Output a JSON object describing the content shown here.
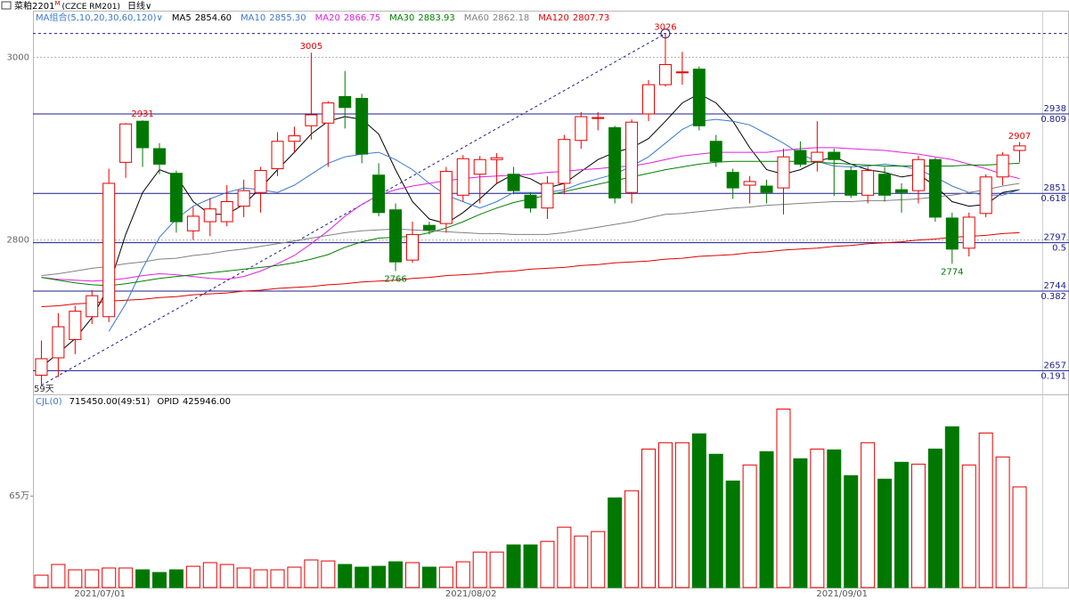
{
  "header": {
    "symbol": "菜粕2201",
    "superscript": "M",
    "code": "(CZCE RM201)",
    "period": "日线"
  },
  "chart_data": [
    {
      "type": "candlestick",
      "legend_title": "MA组合(5,10,20,30,60,120)",
      "day_count": "59天",
      "categories": [
        null,
        null,
        null,
        null,
        "2021/07/01",
        null,
        null,
        null,
        null,
        null,
        null,
        null,
        null,
        null,
        null,
        null,
        null,
        null,
        null,
        null,
        null,
        null,
        null,
        null,
        null,
        null,
        "2021/08/02",
        null,
        null,
        null,
        null,
        null,
        null,
        null,
        null,
        null,
        null,
        null,
        null,
        null,
        null,
        null,
        null,
        null,
        null,
        null,
        null,
        null,
        "2021/09/01",
        null,
        null,
        null,
        null,
        null,
        null,
        null,
        null,
        null,
        null
      ],
      "open": [
        2652,
        2671,
        2691,
        2716,
        2716,
        2885,
        2930,
        2900,
        2873,
        2810,
        2820,
        2820,
        2837,
        2852,
        2878,
        2908,
        2925,
        2928,
        2957,
        2955,
        2871,
        2833,
        2778,
        2816,
        2818,
        2849,
        2872,
        2888,
        2872,
        2849,
        2835,
        2862,
        2909,
        2933,
        2923,
        2852,
        2938,
        2970,
        2983,
        2987,
        2908,
        2874,
        2860,
        2859,
        2857,
        2898,
        2886,
        2896,
        2876,
        2849,
        2872,
        2855,
        2854,
        2888,
        2824,
        2791,
        2829,
        2869,
        2898
      ],
      "high": [
        2690,
        2720,
        2728,
        2745,
        2878,
        2928,
        2931,
        2906,
        2876,
        2836,
        2846,
        2860,
        2866,
        2880,
        2918,
        2924,
        3005,
        2952,
        2985,
        2960,
        2884,
        2840,
        2820,
        2820,
        2880,
        2893,
        2892,
        2895,
        2880,
        2852,
        2870,
        2915,
        2940,
        2940,
        2925,
        2932,
        2975,
        3026,
        3006,
        2990,
        2915,
        2878,
        2870,
        2866,
        2900,
        2908,
        2930,
        2900,
        2880,
        2880,
        2880,
        2862,
        2892,
        2890,
        2830,
        2830,
        2872,
        2896,
        2907
      ],
      "low": [
        2641,
        2650,
        2675,
        2708,
        2710,
        2868,
        2880,
        2872,
        2808,
        2800,
        2804,
        2815,
        2825,
        2830,
        2870,
        2895,
        2910,
        2880,
        2922,
        2884,
        2826,
        2766,
        2775,
        2806,
        2808,
        2842,
        2840,
        2862,
        2850,
        2830,
        2823,
        2850,
        2900,
        2920,
        2840,
        2840,
        2930,
        2968,
        2970,
        2920,
        2880,
        2845,
        2840,
        2840,
        2828,
        2880,
        2875,
        2848,
        2846,
        2840,
        2842,
        2830,
        2840,
        2820,
        2774,
        2782,
        2825,
        2860,
        2885
      ],
      "close": [
        2670,
        2705,
        2722,
        2739,
        2862,
        2927,
        2901,
        2883,
        2820,
        2826,
        2834,
        2842,
        2854,
        2876,
        2908,
        2914,
        2937,
        2950,
        2945,
        2894,
        2830,
        2776,
        2806,
        2811,
        2875,
        2889,
        2888,
        2890,
        2854,
        2835,
        2862,
        2910,
        2935,
        2934,
        2846,
        2929,
        2970,
        2992,
        2984,
        2925,
        2886,
        2857,
        2864,
        2852,
        2891,
        2883,
        2896,
        2888,
        2849,
        2876,
        2849,
        2852,
        2888,
        2825,
        2790,
        2825,
        2869,
        2893,
        2903
      ],
      "up_color": "#e60000",
      "down_color": "#007800",
      "ylim": [
        2631,
        3051
      ],
      "yticks": [
        2800,
        3000
      ],
      "grid": true,
      "annotations": [
        2931,
        3005,
        2766,
        3026,
        2774,
        2907
      ],
      "fib_levels": [
        {
          "value": 2938,
          "ratio": 0.809
        },
        {
          "value": 2851,
          "ratio": 0.618
        },
        {
          "value": 2797,
          "ratio": 0.5
        },
        {
          "value": 2744,
          "ratio": 0.382
        },
        {
          "value": 2657,
          "ratio": 0.191
        }
      ],
      "fib_color": "#1c1c8c",
      "series": [
        {
          "name": "MA5",
          "color": "#000000",
          "current": {
            "value": 2854.6,
            "label": "2854.60"
          },
          "values": [
            2661,
            2676,
            2692,
            2715,
            2749,
            2806,
            2852,
            2877,
            2870,
            2842,
            2828,
            2828,
            2839,
            2857,
            2877,
            2896,
            2916,
            2930,
            2935,
            2932,
            2916,
            2877,
            2842,
            2823,
            2818,
            2830,
            2845,
            2862,
            2872,
            2867,
            2857,
            2862,
            2875,
            2888,
            2896,
            2901,
            2911,
            2930,
            2950,
            2960,
            2950,
            2930,
            2901,
            2877,
            2872,
            2877,
            2886,
            2891,
            2883,
            2877,
            2874,
            2869,
            2872,
            2859,
            2842,
            2837,
            2839,
            2852,
            2855
          ]
        },
        {
          "name": "MA10",
          "color": "#3c78d0",
          "current": {
            "value": 2855.3,
            "label": "2855.30"
          },
          "values": [
            null,
            null,
            null,
            null,
            2700,
            2730,
            2769,
            2803,
            2823,
            2837,
            2845,
            2852,
            2857,
            2855,
            2852,
            2860,
            2872,
            2884,
            2891,
            2894,
            2896,
            2888,
            2877,
            2862,
            2849,
            2842,
            2835,
            2842,
            2852,
            2852,
            2852,
            2855,
            2862,
            2867,
            2872,
            2881,
            2891,
            2906,
            2921,
            2930,
            2932,
            2930,
            2926,
            2916,
            2906,
            2894,
            2886,
            2881,
            2880,
            2881,
            2883,
            2881,
            2877,
            2869,
            2859,
            2852,
            2849,
            2849,
            2855
          ]
        },
        {
          "name": "MA20",
          "color": "#e020e0",
          "current": {
            "value": 2866.75,
            "label": "2866.75"
          },
          "values": [
            2759,
            2757,
            2756,
            2755,
            2756,
            2758,
            2761,
            2763,
            2762,
            2760,
            2758,
            2757,
            2760,
            2766,
            2774,
            2783,
            2796,
            2810,
            2826,
            2839,
            2849,
            2855,
            2859,
            2862,
            2865,
            2867,
            2869,
            2870,
            2871,
            2872,
            2874,
            2875,
            2877,
            2878,
            2880,
            2881,
            2884,
            2888,
            2892,
            2894,
            2896,
            2896,
            2896,
            2896,
            2898,
            2900,
            2901,
            2901,
            2900,
            2899,
            2898,
            2896,
            2894,
            2891,
            2888,
            2883,
            2878,
            2872,
            2867
          ]
        },
        {
          "name": "MA30",
          "color": "#008000",
          "current": {
            "value": 2883.93,
            "label": "2883.93"
          },
          "values": [
            2759,
            2756,
            2753,
            2751,
            2750,
            2752,
            2755,
            2758,
            2760,
            2762,
            2764,
            2766,
            2768,
            2770,
            2772,
            2775,
            2779,
            2784,
            2792,
            2798,
            2802,
            2803,
            2804,
            2808,
            2813,
            2820,
            2828,
            2835,
            2841,
            2845,
            2849,
            2853,
            2857,
            2861,
            2865,
            2869,
            2873,
            2877,
            2880,
            2883,
            2885,
            2886,
            2886,
            2886,
            2886,
            2886,
            2885,
            2884,
            2883,
            2882,
            2881,
            2881,
            2881,
            2881,
            2881,
            2882,
            2882,
            2883,
            2884
          ]
        },
        {
          "name": "MA60",
          "color": "#808080",
          "current": {
            "value": 2862.18,
            "label": "2862.18"
          },
          "values": [
            2761,
            2763,
            2766,
            2769,
            2771,
            2774,
            2776,
            2779,
            2780,
            2783,
            2785,
            2788,
            2790,
            2793,
            2796,
            2799,
            2802,
            2805,
            2808,
            2810,
            2811,
            2812,
            2811,
            2810,
            2809,
            2808,
            2807,
            2807,
            2806,
            2806,
            2806,
            2808,
            2811,
            2814,
            2817,
            2820,
            2824,
            2828,
            2829,
            2831,
            2833,
            2835,
            2836,
            2838,
            2839,
            2840,
            2841,
            2842,
            2842,
            2843,
            2843,
            2844,
            2845,
            2847,
            2849,
            2852,
            2855,
            2859,
            2862
          ]
        },
        {
          "name": "MA120",
          "color": "#e00000",
          "current": {
            "value": 2807.73,
            "label": "2807.73"
          },
          "values": [
            2727,
            2728,
            2730,
            2731,
            2733,
            2734,
            2735,
            2737,
            2738,
            2740,
            2741,
            2742,
            2744,
            2745,
            2747,
            2748,
            2749,
            2751,
            2752,
            2754,
            2755,
            2756,
            2758,
            2759,
            2761,
            2762,
            2763,
            2765,
            2766,
            2768,
            2769,
            2770,
            2772,
            2773,
            2775,
            2776,
            2777,
            2779,
            2780,
            2782,
            2783,
            2784,
            2786,
            2787,
            2789,
            2790,
            2791,
            2793,
            2794,
            2796,
            2797,
            2798,
            2800,
            2801,
            2803,
            2804,
            2805,
            2807,
            2808
          ]
        }
      ]
    },
    {
      "type": "bar",
      "title": "CJL(0)",
      "readout": "715450.00(49:51)",
      "opid_name": "OPID",
      "opid": {
        "value": 425946,
        "label": "425946.00"
      },
      "values": [
        8.8,
        16.4,
        12.6,
        12.6,
        13.9,
        13.9,
        12.6,
        10.7,
        12.6,
        15.1,
        17.7,
        16.4,
        13.9,
        12.6,
        12.6,
        14.5,
        19.6,
        18.9,
        16.4,
        14.5,
        15.1,
        18.3,
        17.7,
        14.5,
        14.5,
        18.3,
        25.2,
        25.2,
        30.3,
        30.3,
        32.8,
        42.9,
        36.6,
        39.8,
        63.7,
        68.8,
        98.4,
        102.9,
        102.9,
        109.2,
        94.7,
        75.7,
        87.1,
        96.5,
        126.8,
        91.5,
        98.4,
        97.8,
        79.5,
        102.9,
        77.0,
        89.0,
        87.7,
        98.4,
        114.2,
        87.1,
        109.8,
        92.8,
        71.5
      ],
      "ylim": [
        0,
        136
      ],
      "yticks": [
        {
          "value": 65,
          "label": "65万"
        }
      ]
    }
  ]
}
